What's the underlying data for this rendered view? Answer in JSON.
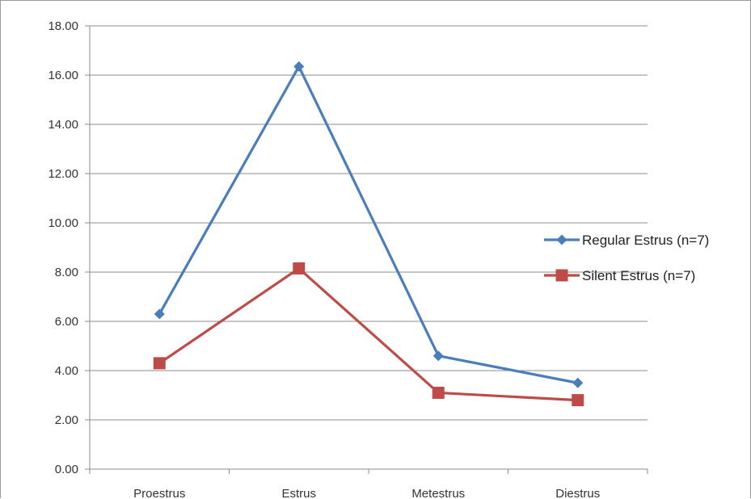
{
  "chart_data": {
    "type": "line",
    "title": "",
    "xlabel": "",
    "ylabel": "",
    "categories": [
      "Proestrus",
      "Estrus",
      "Metestrus",
      "Diestrus"
    ],
    "ylim": [
      0,
      18
    ],
    "ytick_step": 2,
    "ytick_labels": [
      "0.00",
      "2.00",
      "4.00",
      "6.00",
      "8.00",
      "10.00",
      "12.00",
      "14.00",
      "16.00",
      "18.00"
    ],
    "grid": "horizontal",
    "legend_position": "right",
    "series": [
      {
        "name": "Regular Estrus (n=7)",
        "values": [
          6.3,
          16.35,
          4.6,
          3.5
        ],
        "color": "#4a7ebb",
        "marker": "diamond"
      },
      {
        "name": "Silent Estrus (n=7)",
        "values": [
          4.3,
          8.15,
          3.1,
          2.8
        ],
        "color": "#be4b48",
        "marker": "square"
      }
    ]
  }
}
